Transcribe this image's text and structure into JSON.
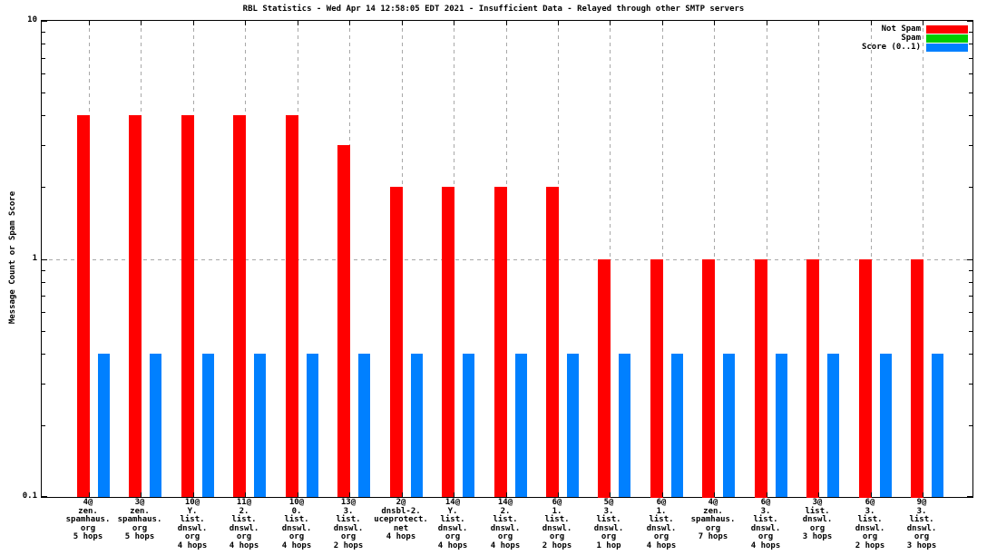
{
  "chart_data": {
    "type": "bar",
    "title": "RBL Statistics - Wed Apr 14 12:58:05 EDT 2021 - Insufficient Data - Relayed through other SMTP servers",
    "xlabel": "",
    "ylabel": "Message Count or Spam Score",
    "yscale": "log",
    "ylim": [
      0.1,
      10
    ],
    "yticks": [
      {
        "label": "0.1",
        "value": 0.1
      },
      {
        "label": "1",
        "value": 1
      },
      {
        "label": "10",
        "value": 10
      }
    ],
    "grid": true,
    "legend_position": "top-right-inside",
    "background_color": "#ffffff",
    "grid_color": "#a8a8a8",
    "axis_color": "#000000",
    "categories": [
      [
        "4@",
        "zen.",
        "spamhaus.",
        "org",
        "5 hops"
      ],
      [
        "3@",
        "zen.",
        "spamhaus.",
        "org",
        "5 hops"
      ],
      [
        "10@",
        "Y.",
        "list.",
        "dnswl.",
        "org",
        "4 hops"
      ],
      [
        "11@",
        "2.",
        "list.",
        "dnswl.",
        "org",
        "4 hops"
      ],
      [
        "10@",
        "0.",
        "list.",
        "dnswl.",
        "org",
        "4 hops"
      ],
      [
        "13@",
        "3.",
        "list.",
        "dnswl.",
        "org",
        "2 hops"
      ],
      [
        "2@",
        "dnsbl-2.",
        "uceprotect.",
        "net",
        "4 hops"
      ],
      [
        "14@",
        "Y.",
        "list.",
        "dnswl.",
        "org",
        "4 hops"
      ],
      [
        "14@",
        "2.",
        "list.",
        "dnswl.",
        "org",
        "4 hops"
      ],
      [
        "6@",
        "1.",
        "list.",
        "dnswl.",
        "org",
        "2 hops"
      ],
      [
        "5@",
        "3.",
        "list.",
        "dnswl.",
        "org",
        "1 hop"
      ],
      [
        "6@",
        "1.",
        "list.",
        "dnswl.",
        "org",
        "4 hops"
      ],
      [
        "4@",
        "zen.",
        "spamhaus.",
        "org",
        "7 hops"
      ],
      [
        "6@",
        "3.",
        "list.",
        "dnswl.",
        "org",
        "4 hops"
      ],
      [
        "3@",
        "list.",
        "dnswl.",
        "org",
        "3 hops"
      ],
      [
        "6@",
        "3.",
        "list.",
        "dnswl.",
        "org",
        "2 hops"
      ],
      [
        "9@",
        "3.",
        "list.",
        "dnswl.",
        "org",
        "3 hops"
      ]
    ],
    "series": [
      {
        "name": "Not Spam",
        "color": "#ff0000",
        "values": [
          4,
          4,
          4,
          4,
          4,
          3,
          2,
          2,
          2,
          2,
          1,
          1,
          1,
          1,
          1,
          1,
          1
        ]
      },
      {
        "name": "Spam",
        "color": "#00cc00",
        "values": [
          0,
          0,
          0,
          0,
          0,
          0,
          0,
          0,
          0,
          0,
          0,
          0,
          0,
          0,
          0,
          0,
          0
        ]
      },
      {
        "name": "Score (0..1)",
        "color": "#0080ff",
        "values": [
          0.4,
          0.4,
          0.4,
          0.4,
          0.4,
          0.4,
          0.4,
          0.4,
          0.4,
          0.4,
          0.4,
          0.4,
          0.4,
          0.4,
          0.4,
          0.4,
          0.4
        ]
      }
    ]
  }
}
